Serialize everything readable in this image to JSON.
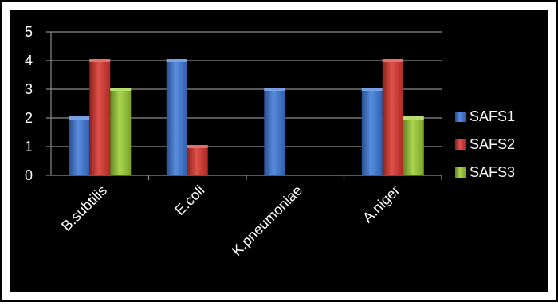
{
  "chart_data": {
    "type": "bar",
    "categories": [
      "B.subtilis",
      "E.coli",
      "K.pneumoniae",
      "A.niger"
    ],
    "series": [
      {
        "name": "SAFS1",
        "values": [
          2,
          4,
          3,
          3
        ],
        "color": "#3b78d8"
      },
      {
        "name": "SAFS2",
        "values": [
          4,
          1,
          0,
          4
        ],
        "color": "#d9322b"
      },
      {
        "name": "SAFS3",
        "values": [
          3,
          0,
          0,
          2
        ],
        "color": "#9acd32"
      }
    ],
    "y_ticks": [
      "0",
      "1",
      "2",
      "3",
      "4",
      "5"
    ],
    "ylim": [
      0,
      5
    ],
    "title": "",
    "xlabel": "",
    "ylabel": "",
    "grid": true,
    "legend": "right",
    "colors": {
      "background": "#000000",
      "plot_area": "#000000",
      "grid": "#8c8c8c",
      "text": "#ffffff"
    }
  }
}
